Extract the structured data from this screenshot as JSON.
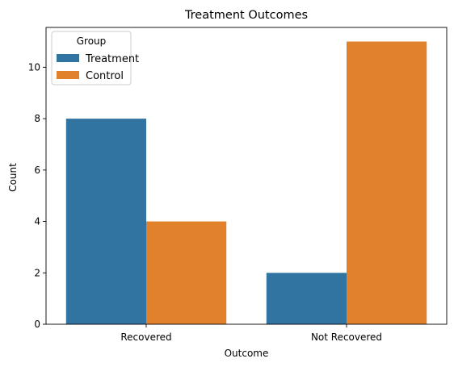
{
  "chart_data": {
    "type": "bar",
    "title": "Treatment Outcomes",
    "xlabel": "Outcome",
    "ylabel": "Count",
    "categories": [
      "Recovered",
      "Not Recovered"
    ],
    "series": [
      {
        "name": "Treatment",
        "values": [
          8,
          2
        ],
        "color": "#3274a1"
      },
      {
        "name": "Control",
        "values": [
          4,
          11
        ],
        "color": "#e1812c"
      }
    ],
    "ylim": [
      0,
      11.55
    ],
    "yticks": [
      0,
      2,
      4,
      6,
      8,
      10
    ],
    "legend": {
      "title": "Group",
      "position": "top-left"
    },
    "grid": false
  }
}
